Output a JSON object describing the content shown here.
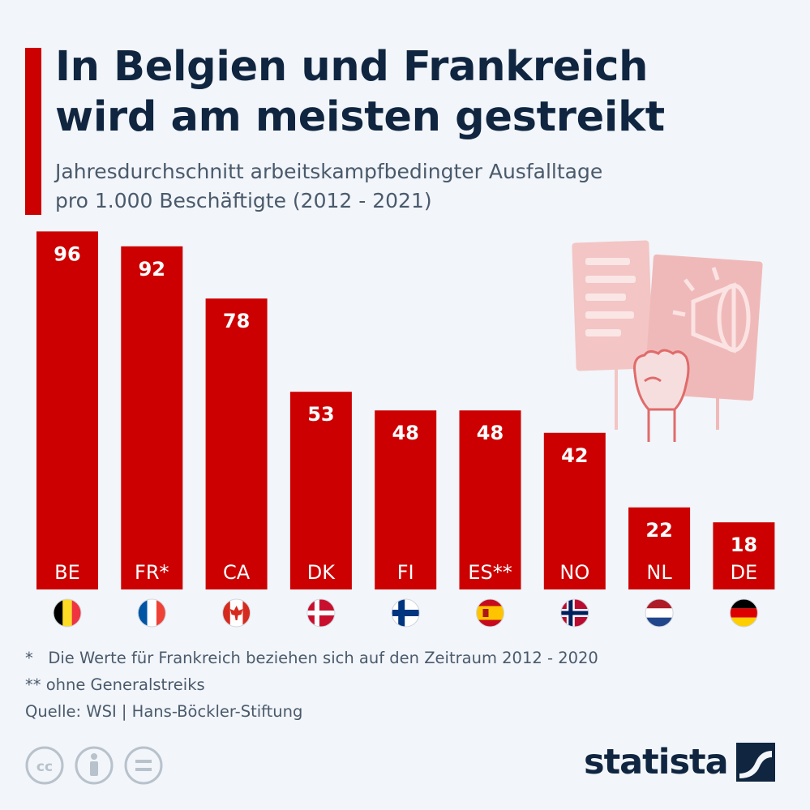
{
  "title_line1": "In Belgien und Frankreich",
  "title_line2": "wird am meisten gestreikt",
  "subtitle_line1": "Jahresdurchschnitt arbeitskampfbedingter Ausfalltage",
  "subtitle_line2": "pro 1.000 Beschäftigte (2012 - 2021)",
  "colors": {
    "bar": "#cc0000",
    "title": "#0f2540",
    "text": "#4a5a6c",
    "illustration": "#f2c2c2"
  },
  "chart_data": {
    "type": "bar",
    "categories": [
      "BE",
      "FR*",
      "CA",
      "DK",
      "FI",
      "ES**",
      "NO",
      "NL",
      "DE"
    ],
    "values": [
      96,
      92,
      78,
      53,
      48,
      48,
      42,
      22,
      18
    ],
    "flags": [
      "flag-be",
      "flag-fr",
      "flag-ca",
      "flag-dk",
      "flag-fi",
      "flag-es",
      "flag-no",
      "flag-nl",
      "flag-de"
    ]
  },
  "footnotes": [
    "*   Die Werte für Frankreich beziehen sich auf den Zeitraum 2012 - 2020",
    "** ohne Generalstreiks",
    "Quelle: WSI | Hans-Böckler-Stiftung"
  ],
  "license_icons": [
    "cc-icon",
    "by-icon",
    "nd-icon"
  ],
  "logo_text": "statista"
}
